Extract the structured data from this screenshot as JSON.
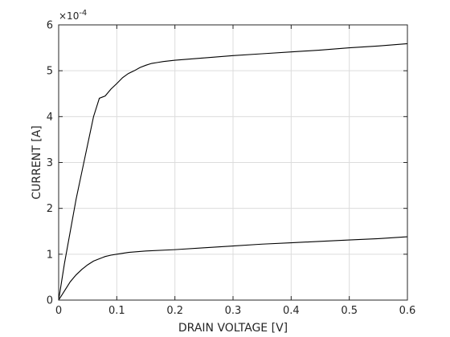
{
  "chart_data": {
    "type": "line",
    "title": "",
    "xlabel": "DRAIN VOLTAGE  [V]",
    "ylabel": "CURRENT  [A]",
    "xlim": [
      0,
      0.6
    ],
    "ylim": [
      0,
      0.0006
    ],
    "grid": true,
    "legend": "none",
    "y_exponent_label": "×10^-4",
    "x_ticks": [
      "0",
      "0.1",
      "0.2",
      "0.3",
      "0.4",
      "0.5",
      "0.6"
    ],
    "x_tick_values": [
      0,
      0.1,
      0.2,
      0.3,
      0.4,
      0.5,
      0.6
    ],
    "y_ticks": [
      "0",
      "1",
      "2",
      "3",
      "4",
      "5",
      "6"
    ],
    "y_tick_values": [
      0,
      0.0001,
      0.0002,
      0.0003,
      0.0004,
      0.0005,
      0.0006
    ],
    "series": [
      {
        "x": [
          0,
          0.01,
          0.02,
          0.03,
          0.04,
          0.05,
          0.06,
          0.07,
          0.08,
          0.09,
          0.1,
          0.11,
          0.12,
          0.13,
          0.14,
          0.15,
          0.16,
          0.17,
          0.18,
          0.2,
          0.25,
          0.3,
          0.35,
          0.4,
          0.45,
          0.5,
          0.55,
          0.6
        ],
        "values": [
          0,
          8e-05,
          0.00015,
          0.00022,
          0.00028,
          0.00034,
          0.0004,
          0.00044,
          0.000445,
          0.00046,
          0.000472,
          0.000485,
          0.000494,
          0.0005,
          0.000507,
          0.000512,
          0.000516,
          0.000518,
          0.00052,
          0.000523,
          0.000528,
          0.000533,
          0.000537,
          0.000541,
          0.000545,
          0.00055,
          0.000554,
          0.000559
        ],
        "color": "#000000"
      },
      {
        "x": [
          0,
          0.01,
          0.02,
          0.03,
          0.04,
          0.05,
          0.06,
          0.07,
          0.08,
          0.09,
          0.1,
          0.11,
          0.12,
          0.15,
          0.2,
          0.25,
          0.3,
          0.35,
          0.4,
          0.45,
          0.5,
          0.55,
          0.6
        ],
        "values": [
          0,
          2e-05,
          4e-05,
          5.5e-05,
          6.7e-05,
          7.7e-05,
          8.5e-05,
          9e-05,
          9.5e-05,
          9.8e-05,
          0.0001,
          0.000102,
          0.000104,
          0.000107,
          0.00011,
          0.000114,
          0.000118,
          0.000122,
          0.000125,
          0.000128,
          0.000131,
          0.000134,
          0.000138
        ],
        "color": "#000000"
      }
    ]
  }
}
